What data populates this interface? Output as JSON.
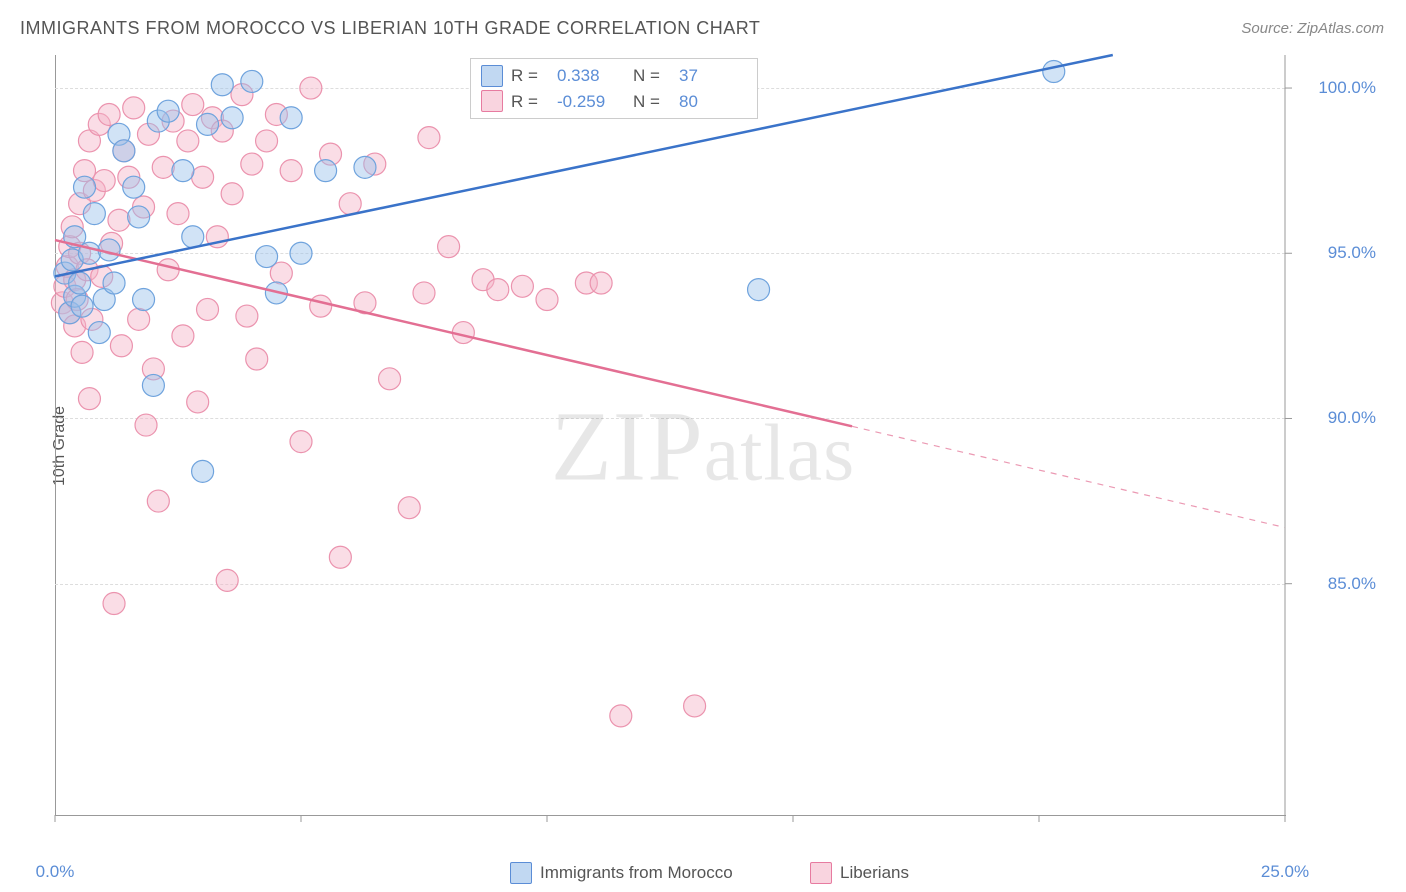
{
  "title": "IMMIGRANTS FROM MOROCCO VS LIBERIAN 10TH GRADE CORRELATION CHART",
  "source_label": "Source: ",
  "source_name": "ZipAtlas.com",
  "ylabel": "10th Grade",
  "watermark": "ZIPatlas",
  "chart": {
    "type": "scatter",
    "xlim": [
      0,
      25
    ],
    "ylim": [
      78,
      101
    ],
    "y_ticks": [
      85,
      90,
      95,
      100
    ],
    "y_tick_labels": [
      "85.0%",
      "90.0%",
      "95.0%",
      "100.0%"
    ],
    "x_ticks": [
      0,
      5,
      10,
      15,
      20,
      25
    ],
    "x_tick_labels": [
      "0.0%",
      "",
      "",
      "",
      "",
      "25.0%"
    ],
    "grid_color": "#dddddd",
    "background_color": "#ffffff",
    "axis_color": "#999999",
    "label_color": "#5b8dd6",
    "title_color": "#555555",
    "marker_radius": 11,
    "marker_stroke_width": 1.2,
    "line_width": 2.5,
    "series": [
      {
        "name": "Immigrants from Morocco",
        "fill": "rgba(154,194,236,0.45)",
        "stroke": "#6fa3dd",
        "line_color": "#3a73c9",
        "R": "0.338",
        "N": "37",
        "trend": {
          "x1": 0,
          "y1": 94.3,
          "x2": 21.5,
          "y2": 101,
          "solid_to_x": 21.5
        },
        "points": [
          [
            0.2,
            94.4
          ],
          [
            0.3,
            93.2
          ],
          [
            0.35,
            94.8
          ],
          [
            0.4,
            95.5
          ],
          [
            0.4,
            93.7
          ],
          [
            0.5,
            94.1
          ],
          [
            0.55,
            93.4
          ],
          [
            0.6,
            97.0
          ],
          [
            0.7,
            95.0
          ],
          [
            0.8,
            96.2
          ],
          [
            0.9,
            92.6
          ],
          [
            1.0,
            93.6
          ],
          [
            1.1,
            95.1
          ],
          [
            1.2,
            94.1
          ],
          [
            1.3,
            98.6
          ],
          [
            1.4,
            98.1
          ],
          [
            1.6,
            97.0
          ],
          [
            1.7,
            96.1
          ],
          [
            1.8,
            93.6
          ],
          [
            2.0,
            91.0
          ],
          [
            2.1,
            99.0
          ],
          [
            2.3,
            99.3
          ],
          [
            2.6,
            97.5
          ],
          [
            2.8,
            95.5
          ],
          [
            3.0,
            88.4
          ],
          [
            3.1,
            98.9
          ],
          [
            3.4,
            100.1
          ],
          [
            3.6,
            99.1
          ],
          [
            4.0,
            100.2
          ],
          [
            4.3,
            94.9
          ],
          [
            4.5,
            93.8
          ],
          [
            4.8,
            99.1
          ],
          [
            5.0,
            95.0
          ],
          [
            5.5,
            97.5
          ],
          [
            6.3,
            97.6
          ],
          [
            14.3,
            93.9
          ],
          [
            20.3,
            100.5
          ]
        ]
      },
      {
        "name": "Liberians",
        "fill": "rgba(245,180,200,0.45)",
        "stroke": "#eb93ae",
        "line_color": "#e36f93",
        "R": "-0.259",
        "N": "80",
        "trend": {
          "x1": 0,
          "y1": 95.4,
          "x2": 25,
          "y2": 86.7,
          "solid_to_x": 16.2
        },
        "points": [
          [
            0.15,
            93.5
          ],
          [
            0.2,
            94.0
          ],
          [
            0.25,
            94.6
          ],
          [
            0.3,
            93.2
          ],
          [
            0.3,
            95.2
          ],
          [
            0.35,
            95.8
          ],
          [
            0.4,
            92.8
          ],
          [
            0.4,
            94.2
          ],
          [
            0.45,
            93.6
          ],
          [
            0.5,
            95.0
          ],
          [
            0.5,
            96.5
          ],
          [
            0.55,
            92.0
          ],
          [
            0.6,
            97.5
          ],
          [
            0.65,
            94.5
          ],
          [
            0.7,
            90.6
          ],
          [
            0.7,
            98.4
          ],
          [
            0.75,
            93.0
          ],
          [
            0.8,
            96.9
          ],
          [
            0.9,
            98.9
          ],
          [
            0.95,
            94.3
          ],
          [
            1.0,
            97.2
          ],
          [
            1.1,
            99.2
          ],
          [
            1.15,
            95.3
          ],
          [
            1.2,
            84.4
          ],
          [
            1.3,
            96.0
          ],
          [
            1.35,
            92.2
          ],
          [
            1.4,
            98.1
          ],
          [
            1.5,
            97.3
          ],
          [
            1.6,
            99.4
          ],
          [
            1.7,
            93.0
          ],
          [
            1.8,
            96.4
          ],
          [
            1.85,
            89.8
          ],
          [
            1.9,
            98.6
          ],
          [
            2.0,
            91.5
          ],
          [
            2.1,
            87.5
          ],
          [
            2.2,
            97.6
          ],
          [
            2.3,
            94.5
          ],
          [
            2.4,
            99.0
          ],
          [
            2.5,
            96.2
          ],
          [
            2.6,
            92.5
          ],
          [
            2.7,
            98.4
          ],
          [
            2.8,
            99.5
          ],
          [
            2.9,
            90.5
          ],
          [
            3.0,
            97.3
          ],
          [
            3.1,
            93.3
          ],
          [
            3.2,
            99.1
          ],
          [
            3.3,
            95.5
          ],
          [
            3.4,
            98.7
          ],
          [
            3.5,
            85.1
          ],
          [
            3.6,
            96.8
          ],
          [
            3.8,
            99.8
          ],
          [
            3.9,
            93.1
          ],
          [
            4.0,
            97.7
          ],
          [
            4.1,
            91.8
          ],
          [
            4.3,
            98.4
          ],
          [
            4.5,
            99.2
          ],
          [
            4.6,
            94.4
          ],
          [
            4.8,
            97.5
          ],
          [
            5.0,
            89.3
          ],
          [
            5.2,
            100.0
          ],
          [
            5.4,
            93.4
          ],
          [
            5.6,
            98.0
          ],
          [
            5.8,
            85.8
          ],
          [
            6.0,
            96.5
          ],
          [
            6.3,
            93.5
          ],
          [
            6.5,
            97.7
          ],
          [
            6.8,
            91.2
          ],
          [
            7.2,
            87.3
          ],
          [
            7.5,
            93.8
          ],
          [
            7.6,
            98.5
          ],
          [
            8.0,
            95.2
          ],
          [
            8.3,
            92.6
          ],
          [
            8.7,
            94.2
          ],
          [
            9.0,
            93.9
          ],
          [
            9.5,
            94.0
          ],
          [
            10.0,
            93.6
          ],
          [
            10.8,
            94.1
          ],
          [
            11.1,
            94.1
          ],
          [
            11.5,
            81.0
          ],
          [
            13.0,
            81.3
          ]
        ]
      }
    ]
  },
  "legend_top": {
    "r_label": "R  =",
    "n_label": "N  ="
  },
  "legend_bottom": [
    {
      "swatch": "blue"
    },
    {
      "swatch": "pink"
    }
  ]
}
